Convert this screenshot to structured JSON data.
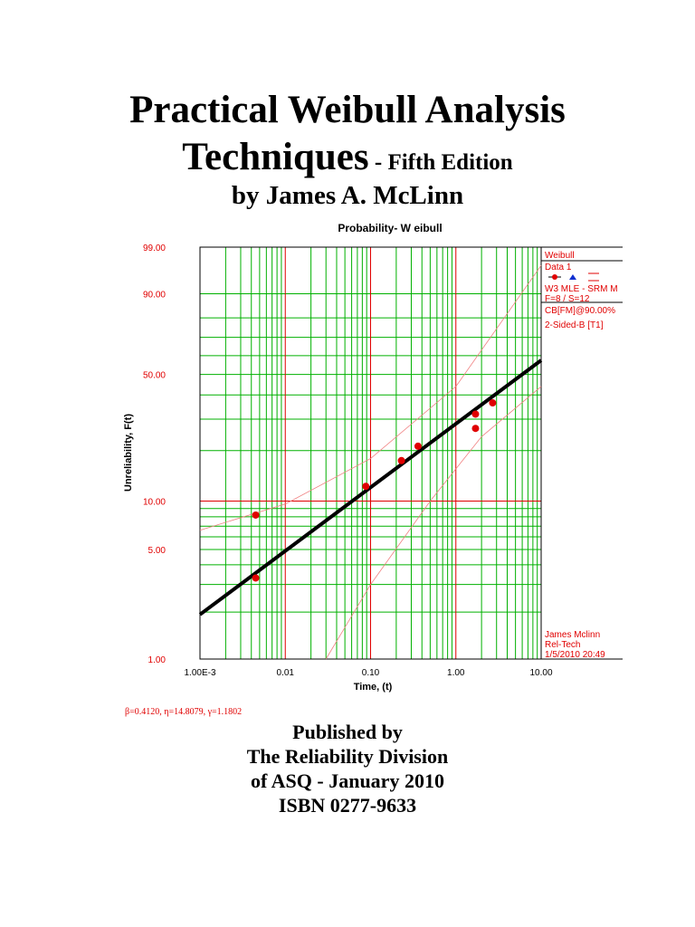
{
  "cover": {
    "title_line1": "Practical Weibull Analysis",
    "title_line2_main": "Techniques",
    "title_line2_edition": " - Fifth Edition",
    "author": "by James A. McLinn",
    "publisher_lines": [
      "Published by",
      "The Reliability Division",
      "of ASQ - January 2010",
      "ISBN 0277-9633"
    ]
  },
  "params_text": "β=0.4120, η=14.8079, γ=1.1802",
  "chart_data": {
    "type": "scatter",
    "title": "Probability- W eibull",
    "xlabel": "Time, (t)",
    "ylabel": "Unreliability, F(t)",
    "x_scale": "log",
    "y_scale": "weibull",
    "xlim": [
      0.001,
      10
    ],
    "ylim": [
      1,
      99
    ],
    "x_ticks": [
      {
        "value": 0.001,
        "label": "1.00E-3"
      },
      {
        "value": 0.01,
        "label": "0.01"
      },
      {
        "value": 0.1,
        "label": "0.10"
      },
      {
        "value": 1,
        "label": "1.00"
      },
      {
        "value": 10,
        "label": "10.00"
      }
    ],
    "y_ticks": [
      {
        "value": 99,
        "label": "99.00"
      },
      {
        "value": 90,
        "label": "90.00"
      },
      {
        "value": 50,
        "label": "50.00"
      },
      {
        "value": 10,
        "label": "10.00"
      },
      {
        "value": 5,
        "label": "5.00"
      },
      {
        "value": 1,
        "label": "1.00"
      }
    ],
    "grid": true,
    "points": [
      {
        "x": 0.0045,
        "y": 8.2
      },
      {
        "x": 0.0045,
        "y": 3.3
      },
      {
        "x": 0.088,
        "y": 12.3
      },
      {
        "x": 0.23,
        "y": 17.5
      },
      {
        "x": 0.36,
        "y": 21.2
      },
      {
        "x": 1.7,
        "y": 26.7
      },
      {
        "x": 1.7,
        "y": 31.9
      },
      {
        "x": 2.7,
        "y": 36.5
      }
    ],
    "fit_line": {
      "x": [
        0.001,
        10
      ],
      "y": [
        1.93,
        57.5
      ]
    },
    "confidence_bounds": {
      "upper": [
        {
          "x": 0.001,
          "y": 6.6
        },
        {
          "x": 0.01,
          "y": 9.6
        },
        {
          "x": 0.1,
          "y": 18
        },
        {
          "x": 1,
          "y": 44
        },
        {
          "x": 10,
          "y": 97
        }
      ],
      "lower": [
        {
          "x": 0.03,
          "y": 1
        },
        {
          "x": 0.1,
          "y": 3
        },
        {
          "x": 0.5,
          "y": 10
        },
        {
          "x": 2,
          "y": 24
        },
        {
          "x": 10,
          "y": 44
        }
      ]
    },
    "legend": {
      "placement": "right",
      "lines": [
        "Weibull",
        "Data 1",
        "W3 MLE - SRM M",
        "F=8 / S=12",
        "CB[FM]@90.00%",
        "2-Sided-B [T1]"
      ],
      "footer_lines": [
        "James Mclinn",
        "Rel-Tech",
        "1/5/2010 20:49"
      ]
    },
    "colors": {
      "grid_minor": "#00b000",
      "grid_major": "#e00000",
      "points": "#e00000",
      "fit": "#000000",
      "bounds": "#f08080",
      "legend_text": "#e00000",
      "axis_text": "#e00000"
    }
  }
}
